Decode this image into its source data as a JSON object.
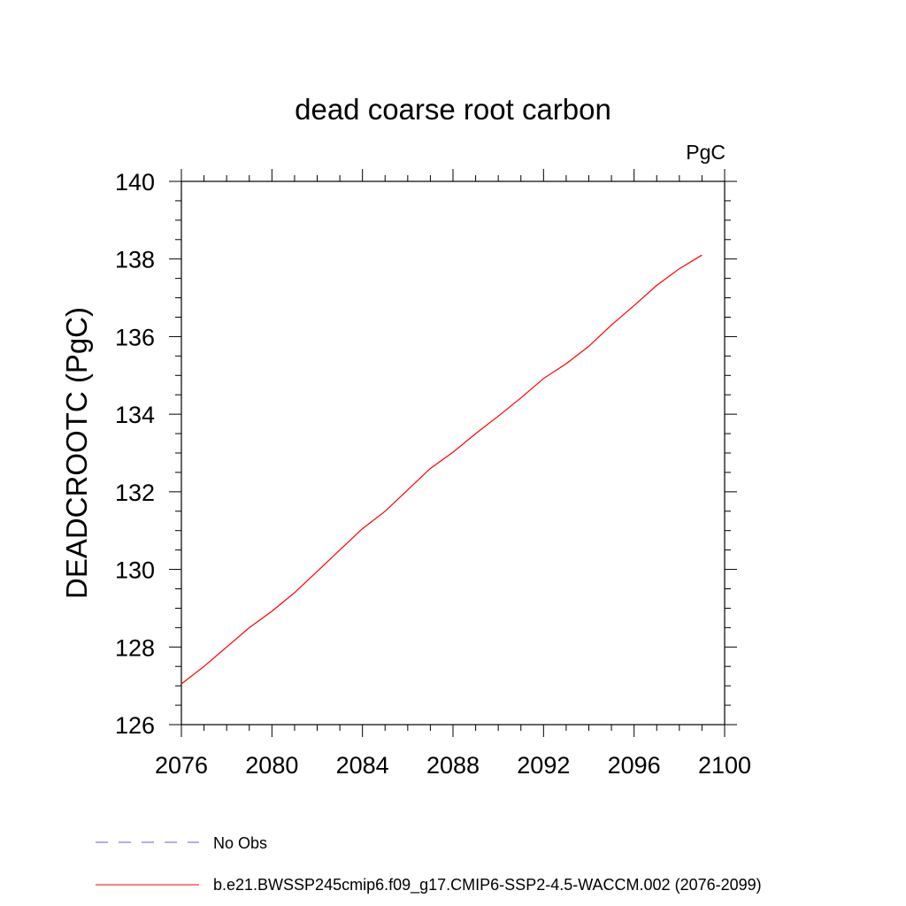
{
  "chart_data": {
    "type": "line",
    "title": "dead coarse root carbon",
    "units_label": "PgC",
    "ylabel": "DEADCROOTC  (PgC)",
    "xlabel": "",
    "xlim": [
      2076,
      2100
    ],
    "ylim": [
      126,
      140
    ],
    "x_ticks": [
      2076,
      2080,
      2084,
      2088,
      2092,
      2096,
      2100
    ],
    "y_ticks": [
      126,
      128,
      130,
      132,
      134,
      136,
      138,
      140
    ],
    "grid": false,
    "legend_position": "bottom-left",
    "series": [
      {
        "name": "No Obs",
        "color": "#6a5acd",
        "dash": "dashed",
        "x": [],
        "y": []
      },
      {
        "name": "b.e21.BWSSP245cmip6.f09_g17.CMIP6-SSP2-4.5-WACCM.002 (2076-2099)",
        "color": "#ff0000",
        "dash": "solid",
        "x": [
          2076,
          2077,
          2078,
          2079,
          2080,
          2081,
          2082,
          2083,
          2084,
          2085,
          2086,
          2087,
          2088,
          2089,
          2090,
          2091,
          2092,
          2093,
          2094,
          2095,
          2096,
          2097,
          2098,
          2099
        ],
        "y": [
          127.05,
          127.5,
          128.0,
          128.5,
          128.92,
          129.4,
          129.95,
          130.5,
          131.05,
          131.5,
          132.05,
          132.6,
          133.02,
          133.5,
          133.95,
          134.42,
          134.92,
          135.3,
          135.75,
          136.3,
          136.8,
          137.32,
          137.75,
          138.1
        ]
      }
    ]
  }
}
